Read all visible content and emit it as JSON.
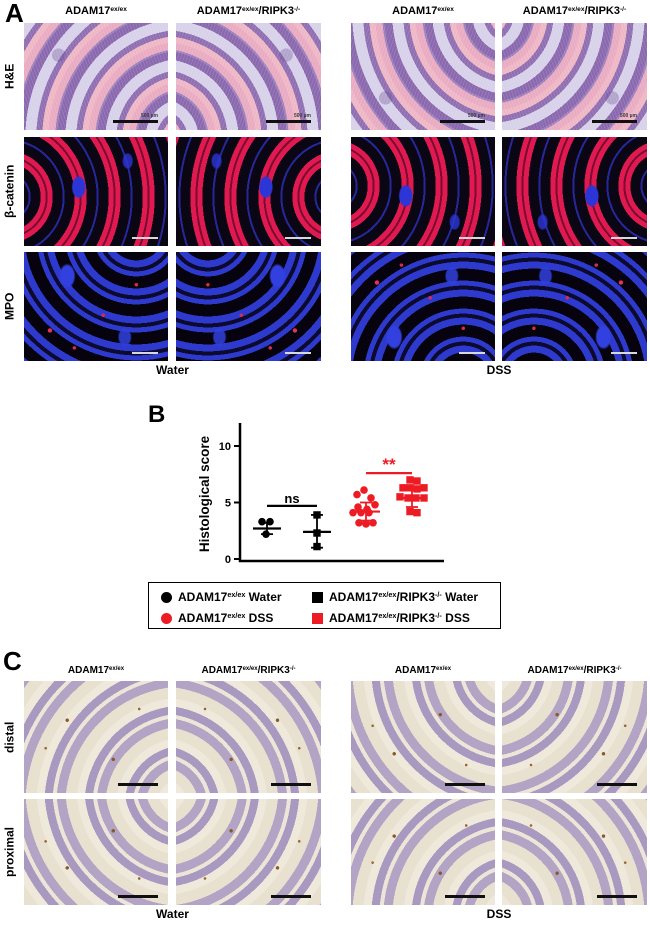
{
  "genotypes": {
    "adam17": [
      {
        "t": "ADAM17"
      },
      {
        "t": "ex/ex",
        "sup": true
      }
    ],
    "adam17_ripk3": [
      {
        "t": "ADAM17"
      },
      {
        "t": "ex/ex",
        "sup": true
      },
      {
        "t": "/RIPK3"
      },
      {
        "t": "-/-",
        "sup": true
      }
    ]
  },
  "panelA": {
    "label": "A",
    "row_labels": [
      "H&E",
      "β-catenin",
      "MPO"
    ],
    "condition_labels": [
      "Water",
      "DSS"
    ],
    "scalebar_label": "500 µm"
  },
  "panelB": {
    "label": "B",
    "chart_data": {
      "type": "scatter",
      "title": "",
      "xlabel": "",
      "ylabel": "Histological score",
      "yticks": [
        0,
        5,
        10
      ],
      "ylim": [
        0,
        12
      ],
      "legend_position": "below",
      "grid": false,
      "groups": [
        {
          "name": "ADAM17ex/ex Water",
          "marker": "circle",
          "color": "#000000",
          "mean": 2.7,
          "err_lo": 2.2,
          "err_hi": 3.2,
          "points": [
            [
              -5,
              3.3
            ],
            [
              3,
              3.3
            ],
            [
              -1,
              2.2
            ]
          ]
        },
        {
          "name": "ADAM17ex/ex/RIPK3-/- Water",
          "marker": "square",
          "color": "#000000",
          "mean": 2.4,
          "err_lo": 1.0,
          "err_hi": 3.9,
          "points": [
            [
              0,
              3.9
            ],
            [
              0,
              2.3
            ],
            [
              0,
              1.1
            ]
          ]
        },
        {
          "name": "ADAM17ex/ex DSS",
          "marker": "circle",
          "color": "#ed1c24",
          "mean": 4.2,
          "err_lo": 3.4,
          "err_hi": 5.0,
          "points": [
            [
              -2,
              6.1
            ],
            [
              -9,
              5.7
            ],
            [
              5,
              5.4
            ],
            [
              9,
              4.8
            ],
            [
              -8,
              4.6
            ],
            [
              1,
              4.4
            ],
            [
              -13,
              4.1
            ],
            [
              -5,
              4.1
            ],
            [
              3,
              4.1
            ],
            [
              -7,
              3.2
            ],
            [
              0,
              3.1
            ],
            [
              7,
              3.2
            ]
          ]
        },
        {
          "name": "ADAM17ex/ex/RIPK3-/- DSS",
          "marker": "square",
          "color": "#ed1c24",
          "mean": 5.4,
          "err_lo": 4.6,
          "err_hi": 6.3,
          "points": [
            [
              -2,
              7.0
            ],
            [
              5,
              6.9
            ],
            [
              -9,
              6.3
            ],
            [
              -2,
              6.3
            ],
            [
              5,
              6.2
            ],
            [
              12,
              6.3
            ],
            [
              -12,
              5.5
            ],
            [
              -4,
              5.4
            ],
            [
              4,
              5.4
            ],
            [
              12,
              5.4
            ],
            [
              -2,
              4.2
            ],
            [
              5,
              4.1
            ]
          ]
        }
      ],
      "significance": [
        {
          "between": [
            0,
            1
          ],
          "label": "ns",
          "value_y": 4.7,
          "color": "#000000"
        },
        {
          "between": [
            2,
            3
          ],
          "label": "**",
          "value_y": 7.6,
          "color": "#ed1c24"
        }
      ]
    }
  },
  "legend": {
    "entries": [
      {
        "marker": "circle",
        "color": "#000000",
        "parts": [
          {
            "t": "ADAM17"
          },
          {
            "t": "ex/ex",
            "sup": true
          },
          {
            "t": " Water"
          }
        ]
      },
      {
        "marker": "square",
        "color": "#000000",
        "parts": [
          {
            "t": "ADAM17"
          },
          {
            "t": "ex/ex",
            "sup": true
          },
          {
            "t": "/RIPK3"
          },
          {
            "t": "-/-",
            "sup": true
          },
          {
            "t": " Water"
          }
        ]
      },
      {
        "marker": "circle",
        "color": "#ed1c24",
        "parts": [
          {
            "t": "ADAM17"
          },
          {
            "t": "ex/ex",
            "sup": true
          },
          {
            "t": " DSS"
          }
        ]
      },
      {
        "marker": "square",
        "color": "#ed1c24",
        "parts": [
          {
            "t": "ADAM17"
          },
          {
            "t": "ex/ex",
            "sup": true
          },
          {
            "t": "/RIPK3"
          },
          {
            "t": "-/-",
            "sup": true
          },
          {
            "t": " DSS"
          }
        ]
      }
    ]
  },
  "panelC": {
    "label": "C",
    "row_labels": [
      "distal",
      "proximal"
    ],
    "condition_labels": [
      "Water",
      "DSS"
    ]
  },
  "colors": {
    "accent_red": "#ed1c24",
    "black": "#000000"
  }
}
